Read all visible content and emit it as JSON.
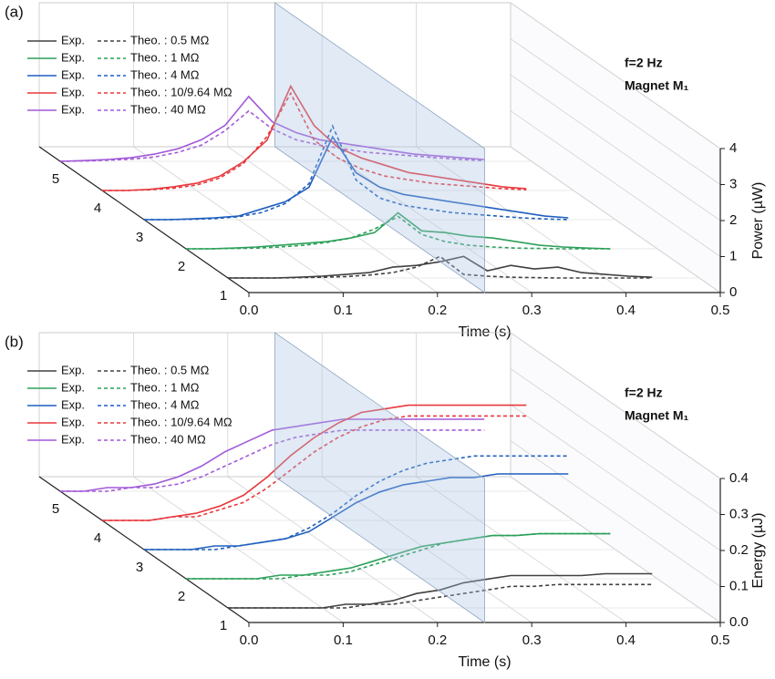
{
  "chart_data": [
    {
      "type": "waterfall3d",
      "panel_label": "(a)",
      "xlabel": "Time (s)",
      "ylabel": "Power (µW)",
      "annotations": [
        "f=2 Hz",
        "Magnet M₁"
      ],
      "x": [
        0,
        0.025,
        0.05,
        0.075,
        0.1,
        0.125,
        0.15,
        0.175,
        0.2,
        0.225,
        0.25,
        0.275,
        0.3,
        0.325,
        0.35,
        0.375,
        0.4,
        0.425,
        0.45
      ],
      "xlim": [
        0,
        0.5
      ],
      "xticks": [
        {
          "value": 0,
          "label": "0.0"
        },
        0.1,
        0.2,
        0.3,
        0.4,
        0.5
      ],
      "ylim": [
        0,
        4
      ],
      "yticks": [
        0,
        1,
        2,
        3,
        4
      ],
      "zticks": [
        1,
        2,
        3,
        4,
        5
      ],
      "series": [
        {
          "name": "Exp.",
          "color": "#404040",
          "dash": false,
          "depth": 1,
          "values": [
            0,
            0,
            0,
            0.02,
            0.05,
            0.1,
            0.15,
            0.3,
            0.35,
            0.45,
            0.6,
            0.2,
            0.35,
            0.25,
            0.3,
            0.15,
            0.1,
            0.05,
            0.02
          ]
        },
        {
          "name": "Theo. : 0.5 MΩ",
          "color": "#404040",
          "dash": true,
          "depth": 1,
          "values": [
            0,
            0,
            0,
            0.01,
            0.02,
            0.04,
            0.08,
            0.15,
            0.3,
            0.6,
            0.1,
            0.05,
            0.02,
            0.01,
            0,
            0,
            0,
            0,
            0
          ]
        },
        {
          "name": "Exp.",
          "color": "#2ca05a",
          "dash": false,
          "depth": 2,
          "values": [
            0,
            0,
            0.02,
            0.05,
            0.1,
            0.15,
            0.2,
            0.3,
            0.45,
            1.0,
            0.5,
            0.45,
            0.35,
            0.3,
            0.2,
            0.1,
            0.05,
            0.02,
            0
          ]
        },
        {
          "name": "Theo. : 1 MΩ",
          "color": "#2ca05a",
          "dash": true,
          "depth": 2,
          "values": [
            0,
            0,
            0.01,
            0.02,
            0.05,
            0.1,
            0.18,
            0.3,
            0.55,
            0.9,
            0.4,
            0.2,
            0.1,
            0.05,
            0.02,
            0.01,
            0,
            0,
            0
          ]
        },
        {
          "name": "Exp.",
          "color": "#1f5fbf",
          "dash": false,
          "depth": 3,
          "values": [
            0,
            0,
            0.02,
            0.05,
            0.1,
            0.3,
            0.5,
            0.9,
            2.3,
            1.3,
            0.9,
            0.7,
            0.6,
            0.5,
            0.4,
            0.3,
            0.2,
            0.1,
            0.05
          ]
        },
        {
          "name": "Theo. : 4 MΩ",
          "color": "#1f5fbf",
          "dash": true,
          "depth": 3,
          "values": [
            0,
            0,
            0.01,
            0.03,
            0.08,
            0.2,
            0.45,
            1.0,
            2.6,
            1.1,
            0.6,
            0.4,
            0.3,
            0.2,
            0.15,
            0.1,
            0.05,
            0.02,
            0
          ]
        },
        {
          "name": "Exp.",
          "color": "#e8383d",
          "dash": false,
          "depth": 4,
          "values": [
            0,
            0,
            0.03,
            0.1,
            0.2,
            0.4,
            0.8,
            1.4,
            2.9,
            1.8,
            1.2,
            0.9,
            0.7,
            0.5,
            0.4,
            0.3,
            0.2,
            0.1,
            0.05
          ]
        },
        {
          "name": "Theo. : 10/9.64 MΩ",
          "color": "#e8383d",
          "dash": true,
          "depth": 4,
          "values": [
            0,
            0,
            0.02,
            0.06,
            0.15,
            0.35,
            0.75,
            1.5,
            2.7,
            1.4,
            0.9,
            0.6,
            0.4,
            0.3,
            0.2,
            0.15,
            0.1,
            0.05,
            0.02
          ]
        },
        {
          "name": "Exp.",
          "color": "#a259d9",
          "dash": false,
          "depth": 5,
          "values": [
            0,
            0.02,
            0.05,
            0.1,
            0.2,
            0.35,
            0.6,
            1.0,
            1.8,
            1.1,
            0.8,
            0.6,
            0.5,
            0.4,
            0.3,
            0.2,
            0.15,
            0.1,
            0.05
          ]
        },
        {
          "name": "Theo. : 40 MΩ",
          "color": "#a259d9",
          "dash": true,
          "depth": 5,
          "values": [
            0,
            0.01,
            0.03,
            0.06,
            0.12,
            0.25,
            0.45,
            0.85,
            1.4,
            0.9,
            0.6,
            0.45,
            0.35,
            0.25,
            0.2,
            0.15,
            0.1,
            0.05,
            0.02
          ]
        }
      ]
    },
    {
      "type": "waterfall3d",
      "panel_label": "(b)",
      "xlabel": "Time (s)",
      "ylabel": "Energy (µJ)",
      "annotations": [
        "f=2 Hz",
        "Magnet M₁"
      ],
      "x": [
        0,
        0.025,
        0.05,
        0.075,
        0.1,
        0.125,
        0.15,
        0.175,
        0.2,
        0.225,
        0.25,
        0.275,
        0.3,
        0.325,
        0.35,
        0.375,
        0.4,
        0.425,
        0.45
      ],
      "xlim": [
        0,
        0.5
      ],
      "xticks": [
        {
          "value": 0,
          "label": "0.0"
        },
        0.1,
        0.2,
        0.3,
        0.4,
        0.5
      ],
      "ylim": [
        0,
        0.4
      ],
      "yticks": [
        {
          "value": 0,
          "label": "0.0"
        },
        0.1,
        0.2,
        0.3,
        0.4
      ],
      "zticks": [
        1,
        2,
        3,
        4,
        5
      ],
      "series": [
        {
          "name": "Exp.",
          "color": "#404040",
          "dash": false,
          "depth": 1,
          "values": [
            0,
            0,
            0,
            0,
            0,
            0.01,
            0.01,
            0.02,
            0.04,
            0.05,
            0.07,
            0.08,
            0.09,
            0.09,
            0.09,
            0.09,
            0.095,
            0.095,
            0.095
          ]
        },
        {
          "name": "Theo. : 0.5 MΩ",
          "color": "#404040",
          "dash": true,
          "depth": 1,
          "values": [
            0,
            0,
            0,
            0,
            0,
            0,
            0.01,
            0.01,
            0.02,
            0.03,
            0.04,
            0.05,
            0.06,
            0.06,
            0.065,
            0.065,
            0.065,
            0.065,
            0.065
          ]
        },
        {
          "name": "Exp.",
          "color": "#2ca05a",
          "dash": false,
          "depth": 2,
          "values": [
            0,
            0,
            0,
            0,
            0.01,
            0.01,
            0.02,
            0.03,
            0.05,
            0.07,
            0.09,
            0.1,
            0.11,
            0.12,
            0.12,
            0.125,
            0.125,
            0.125,
            0.125
          ]
        },
        {
          "name": "Theo. : 1 MΩ",
          "color": "#2ca05a",
          "dash": true,
          "depth": 2,
          "values": [
            0,
            0,
            0,
            0,
            0,
            0.01,
            0.01,
            0.02,
            0.04,
            0.06,
            0.08,
            0.1,
            0.11,
            0.12,
            0.12,
            0.125,
            0.125,
            0.125,
            0.125
          ]
        },
        {
          "name": "Exp.",
          "color": "#1f5fbf",
          "dash": false,
          "depth": 3,
          "values": [
            0,
            0,
            0,
            0.01,
            0.01,
            0.02,
            0.03,
            0.05,
            0.09,
            0.13,
            0.16,
            0.18,
            0.19,
            0.2,
            0.2,
            0.21,
            0.21,
            0.21,
            0.21
          ]
        },
        {
          "name": "Theo. : 4 MΩ",
          "color": "#1f5fbf",
          "dash": true,
          "depth": 3,
          "values": [
            0,
            0,
            0,
            0,
            0.01,
            0.02,
            0.03,
            0.06,
            0.1,
            0.15,
            0.19,
            0.22,
            0.24,
            0.25,
            0.26,
            0.26,
            0.26,
            0.26,
            0.26
          ]
        },
        {
          "name": "Exp.",
          "color": "#e8383d",
          "dash": false,
          "depth": 4,
          "values": [
            0,
            0,
            0,
            0.01,
            0.02,
            0.04,
            0.07,
            0.12,
            0.18,
            0.23,
            0.27,
            0.3,
            0.31,
            0.32,
            0.32,
            0.32,
            0.32,
            0.32,
            0.32
          ]
        },
        {
          "name": "Theo. : 10/9.64 MΩ",
          "color": "#e8383d",
          "dash": true,
          "depth": 4,
          "values": [
            0,
            0,
            0,
            0.01,
            0.01,
            0.03,
            0.05,
            0.09,
            0.14,
            0.19,
            0.23,
            0.26,
            0.28,
            0.29,
            0.29,
            0.29,
            0.29,
            0.29,
            0.29
          ]
        },
        {
          "name": "Exp.",
          "color": "#a259d9",
          "dash": false,
          "depth": 5,
          "values": [
            0,
            0,
            0.01,
            0.01,
            0.02,
            0.04,
            0.07,
            0.11,
            0.14,
            0.17,
            0.18,
            0.19,
            0.2,
            0.2,
            0.2,
            0.2,
            0.2,
            0.2,
            0.2
          ]
        },
        {
          "name": "Theo. : 40 MΩ",
          "color": "#a259d9",
          "dash": true,
          "depth": 5,
          "values": [
            0,
            0,
            0,
            0.01,
            0.01,
            0.02,
            0.04,
            0.07,
            0.1,
            0.13,
            0.15,
            0.16,
            0.17,
            0.17,
            0.17,
            0.17,
            0.17,
            0.17,
            0.17
          ]
        }
      ]
    }
  ]
}
